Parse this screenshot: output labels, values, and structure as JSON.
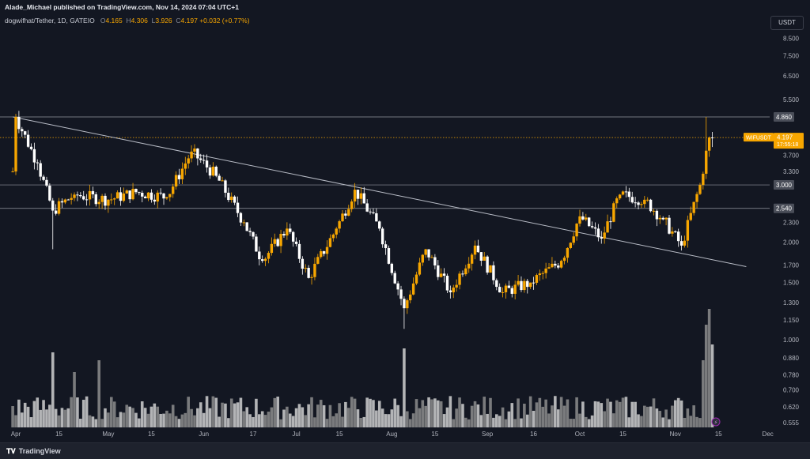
{
  "header": {
    "publisher_line": "Alade_Michael published on TradingView.com, Nov 14, 2024 07:04 UTC+1",
    "pair": "dogwifhat/Tether, 1D, GATEIO",
    "ohlc": [
      {
        "label": "O",
        "value": "4.165"
      },
      {
        "label": "H",
        "value": "4.306"
      },
      {
        "label": "L",
        "value": "3.926"
      },
      {
        "label": "C",
        "value": "4.197"
      }
    ],
    "change": "+0.032 (+0.77%)",
    "currency_button": "USDT"
  },
  "colors": {
    "background": "#131722",
    "up": "#f7a600",
    "down": "#ffffff",
    "volume_up": "#8d8d8d",
    "volume_down": "#d0d0d0",
    "grid_line": "#363a45",
    "trendline": "#b8bcc6"
  },
  "price_tag": {
    "symbol": "WIFUSDT",
    "price": "4.197",
    "countdown": "17:55:18"
  },
  "level_labels": {
    "resistance": "4.860",
    "mid": "3.000",
    "support": "2.540"
  },
  "chart_data": {
    "type": "candlestick",
    "scale": "log",
    "y_ticks": [
      "8.500",
      "7.500",
      "6.500",
      "5.500",
      "4.860",
      "4.197",
      "3.700",
      "3.300",
      "3.000",
      "2.540",
      "2.300",
      "2.000",
      "1.700",
      "1.500",
      "1.300",
      "1.150",
      "1.000",
      "0.880",
      "0.780",
      "0.700",
      "0.620",
      "0.555"
    ],
    "x_ticks": [
      "Apr",
      "15",
      "May",
      "15",
      "Jun",
      "17",
      "Jul",
      "15",
      "Aug",
      "15",
      "Sep",
      "16",
      "Oct",
      "15",
      "Nov",
      "15",
      "Dec"
    ],
    "horizontal_levels": [
      4.86,
      3.0,
      2.54
    ],
    "current_price": 4.197,
    "trendline": {
      "from": {
        "date": "Mar 31",
        "price": 4.86
      },
      "to": {
        "date": "Nov 24",
        "price": 1.68
      }
    },
    "series_anchors": [
      {
        "date": "Mar 31",
        "close": 3.3
      },
      {
        "date": "Apr 1",
        "close": 4.86
      },
      {
        "date": "Apr 8",
        "close": 3.5
      },
      {
        "date": "Apr 13",
        "close": 2.5
      },
      {
        "date": "Apr 20",
        "close": 2.8
      },
      {
        "date": "May 1",
        "close": 2.7
      },
      {
        "date": "May 10",
        "close": 2.85
      },
      {
        "date": "May 20",
        "close": 2.75
      },
      {
        "date": "May 28",
        "close": 3.8
      },
      {
        "date": "Jun 5",
        "close": 3.2
      },
      {
        "date": "Jun 14",
        "close": 2.3
      },
      {
        "date": "Jun 20",
        "close": 1.75
      },
      {
        "date": "Jun 28",
        "close": 2.2
      },
      {
        "date": "Jul 5",
        "close": 1.55
      },
      {
        "date": "Jul 14",
        "close": 2.2
      },
      {
        "date": "Jul 20",
        "close": 2.9
      },
      {
        "date": "Jul 28",
        "close": 2.2
      },
      {
        "date": "Aug 5",
        "close": 1.25
      },
      {
        "date": "Aug 12",
        "close": 1.9
      },
      {
        "date": "Aug 20",
        "close": 1.4
      },
      {
        "date": "Aug 28",
        "close": 1.95
      },
      {
        "date": "Sep 6",
        "close": 1.4
      },
      {
        "date": "Sep 15",
        "close": 1.5
      },
      {
        "date": "Sep 25",
        "close": 1.75
      },
      {
        "date": "Oct 1",
        "close": 2.4
      },
      {
        "date": "Oct 8",
        "close": 2.05
      },
      {
        "date": "Oct 14",
        "close": 2.8
      },
      {
        "date": "Oct 22",
        "close": 2.7
      },
      {
        "date": "Oct 28",
        "close": 2.35
      },
      {
        "date": "Nov 3",
        "close": 1.95
      },
      {
        "date": "Nov 9",
        "close": 3.0
      },
      {
        "date": "Nov 12",
        "close": 4.2
      },
      {
        "date": "Nov 13",
        "close": 4.197
      }
    ]
  }
}
